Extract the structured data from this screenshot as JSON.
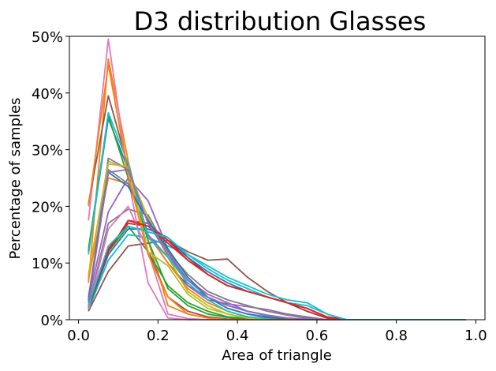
{
  "chart_data": {
    "type": "line",
    "title": "D3 distribution Glasses",
    "xlabel": "Area of triangle",
    "ylabel": "Percentage of samples",
    "xlim": [
      -0.023,
      1.023
    ],
    "ylim": [
      0,
      50
    ],
    "x_ticks": [
      0.0,
      0.2,
      0.4,
      0.6,
      0.8,
      1.0
    ],
    "x_tick_labels": [
      "0.0",
      "0.2",
      "0.4",
      "0.6",
      "0.8",
      "1.0"
    ],
    "y_ticks": [
      0,
      10,
      20,
      30,
      40,
      50
    ],
    "y_tick_labels": [
      "0%",
      "10%",
      "20%",
      "30%",
      "40%",
      "50%"
    ],
    "grid": false,
    "x": [
      0.025,
      0.075,
      0.125,
      0.175,
      0.225,
      0.275,
      0.325,
      0.375,
      0.425,
      0.475,
      0.525,
      0.575,
      0.625,
      0.675,
      0.725,
      0.775,
      0.825,
      0.875,
      0.925,
      0.975
    ],
    "series": [
      {
        "color": "#1f77b4",
        "values": [
          12.0,
          35.5,
          26.5,
          15.0,
          10.0,
          6.0,
          4.0,
          2.5,
          1.5,
          0.8,
          0.3,
          0.1,
          0,
          0,
          0,
          0,
          0,
          0,
          0,
          0
        ]
      },
      {
        "color": "#ff7f0e",
        "values": [
          6.5,
          46.0,
          28.0,
          14.0,
          2.5,
          1.0,
          0.3,
          0.1,
          0,
          0,
          0,
          0,
          0,
          0,
          0,
          0,
          0,
          0,
          0,
          0
        ]
      },
      {
        "color": "#2ca02c",
        "values": [
          1.5,
          12.0,
          16.5,
          12.0,
          6.0,
          3.0,
          1.5,
          0.5,
          0.2,
          0.1,
          0,
          0,
          0,
          0,
          0,
          0,
          0,
          0,
          0,
          0
        ]
      },
      {
        "color": "#d62728",
        "values": [
          1.8,
          12.0,
          17.5,
          17.0,
          14.0,
          11.0,
          8.0,
          6.0,
          5.0,
          4.0,
          3.0,
          2.0,
          0.5,
          0,
          0,
          0,
          0,
          0,
          0,
          0
        ]
      },
      {
        "color": "#9467bd",
        "values": [
          3.5,
          19.0,
          25.0,
          21.0,
          12.5,
          6.0,
          3.5,
          2.8,
          2.3,
          1.8,
          1.0,
          0.5,
          0,
          0,
          0,
          0,
          0,
          0,
          0,
          0
        ]
      },
      {
        "color": "#8c564b",
        "values": [
          1.5,
          8.5,
          13.0,
          13.5,
          14.0,
          12.0,
          10.5,
          10.7,
          7.5,
          5.0,
          3.0,
          1.5,
          0.3,
          0,
          0,
          0,
          0,
          0,
          0,
          0
        ]
      },
      {
        "color": "#e377c2",
        "values": [
          17.5,
          49.5,
          25.0,
          6.5,
          0.3,
          0,
          0,
          0,
          0,
          0,
          0,
          0,
          0,
          0,
          0,
          0,
          0,
          0,
          0,
          0
        ]
      },
      {
        "color": "#7f7f7f",
        "values": [
          2.5,
          17.0,
          19.5,
          18.5,
          12.0,
          8.0,
          5.0,
          3.5,
          2.5,
          1.5,
          0.8,
          0.3,
          0,
          0,
          0,
          0,
          0,
          0,
          0,
          0
        ]
      },
      {
        "color": "#bcbd22",
        "values": [
          7.5,
          28.0,
          26.5,
          18.0,
          11.0,
          5.0,
          2.5,
          1.0,
          0.3,
          0,
          0,
          0,
          0,
          0,
          0,
          0,
          0,
          0,
          0,
          0
        ]
      },
      {
        "color": "#17becf",
        "values": [
          1.8,
          10.5,
          15.0,
          14.5,
          13.0,
          11.5,
          9.0,
          7.0,
          5.5,
          4.0,
          3.0,
          2.5,
          1.0,
          0,
          0,
          0,
          0,
          0,
          0,
          0
        ]
      },
      {
        "color": "#1f77b4",
        "values": [
          2.0,
          11.5,
          16.0,
          16.0,
          14.5,
          11.0,
          8.5,
          6.5,
          5.0,
          4.0,
          3.0,
          2.0,
          0.5,
          0,
          0,
          0,
          0,
          0,
          0,
          0
        ]
      },
      {
        "color": "#ff7f0e",
        "values": [
          7.0,
          25.0,
          24.0,
          15.0,
          10.0,
          5.5,
          3.0,
          1.5,
          0.5,
          0.2,
          0,
          0,
          0,
          0,
          0,
          0,
          0,
          0,
          0,
          0
        ]
      },
      {
        "color": "#2ca02c",
        "values": [
          12.5,
          36.0,
          25.0,
          14.0,
          5.5,
          2.5,
          1.0,
          0.4,
          0.1,
          0,
          0,
          0,
          0,
          0,
          0,
          0,
          0,
          0,
          0,
          0
        ]
      },
      {
        "color": "#d62728",
        "values": [
          2.2,
          12.5,
          17.0,
          16.5,
          14.0,
          10.5,
          8.0,
          6.0,
          5.0,
          4.0,
          3.0,
          2.0,
          0.5,
          0,
          0,
          0,
          0,
          0,
          0,
          0
        ]
      },
      {
        "color": "#9467bd",
        "values": [
          3.0,
          28.5,
          26.5,
          15.0,
          11.0,
          7.0,
          4.5,
          3.0,
          1.5,
          0.7,
          0.3,
          0.1,
          0,
          0,
          0,
          0,
          0,
          0,
          0,
          0
        ]
      },
      {
        "color": "#8c564b",
        "values": [
          20.5,
          39.5,
          27.0,
          12.0,
          4.0,
          1.5,
          0.5,
          0.1,
          0,
          0,
          0,
          0,
          0,
          0,
          0,
          0,
          0,
          0,
          0,
          0
        ]
      },
      {
        "color": "#e377c2",
        "values": [
          1.8,
          16.0,
          20.0,
          12.0,
          1.0,
          0.2,
          0,
          0,
          0,
          0,
          0,
          0,
          0,
          0,
          0,
          0,
          0,
          0,
          0,
          0
        ]
      },
      {
        "color": "#7f7f7f",
        "values": [
          4.0,
          26.5,
          24.0,
          17.5,
          12.0,
          7.0,
          4.0,
          2.0,
          1.0,
          0.5,
          0.2,
          0,
          0,
          0,
          0,
          0,
          0,
          0,
          0,
          0
        ]
      },
      {
        "color": "#bcbd22",
        "values": [
          8.0,
          27.5,
          27.0,
          12.0,
          9.5,
          4.5,
          2.0,
          1.0,
          0.3,
          0.1,
          0,
          0,
          0,
          0,
          0,
          0,
          0,
          0,
          0,
          0
        ]
      },
      {
        "color": "#17becf",
        "values": [
          11.5,
          36.5,
          27.5,
          14.5,
          11.0,
          6.5,
          3.5,
          1.5,
          0.5,
          0.2,
          0,
          0,
          0,
          0,
          0,
          0,
          0,
          0,
          0,
          0
        ]
      },
      {
        "color": "#1f77b4",
        "values": [
          3.5,
          26.0,
          23.5,
          17.5,
          12.5,
          7.5,
          4.0,
          2.0,
          1.0,
          0.4,
          0.1,
          0,
          0,
          0,
          0,
          0,
          0,
          0,
          0,
          0
        ]
      },
      {
        "color": "#ff7f0e",
        "values": [
          20.0,
          45.0,
          25.5,
          11.5,
          4.0,
          1.0,
          0.3,
          0,
          0,
          0,
          0,
          0,
          0,
          0,
          0,
          0,
          0,
          0,
          0,
          0
        ]
      },
      {
        "color": "#d62728",
        "values": [
          2.5,
          12.0,
          17.5,
          16.5,
          13.5,
          10.5,
          8.0,
          6.0,
          5.0,
          4.0,
          3.0,
          1.5,
          0.3,
          0,
          0,
          0,
          0,
          0,
          0,
          0
        ]
      },
      {
        "color": "#9467bd",
        "values": [
          3.0,
          26.0,
          26.5,
          17.0,
          11.5,
          7.0,
          4.0,
          2.5,
          1.5,
          0.8,
          0.3,
          0,
          0,
          0,
          0,
          0,
          0,
          0,
          0,
          0
        ]
      },
      {
        "color": "#17becf",
        "values": [
          2.5,
          13.0,
          16.5,
          15.5,
          14.5,
          11.5,
          9.5,
          7.5,
          6.0,
          4.5,
          3.5,
          3.0,
          1.0,
          0,
          0,
          0,
          0,
          0,
          0,
          0
        ]
      }
    ]
  }
}
